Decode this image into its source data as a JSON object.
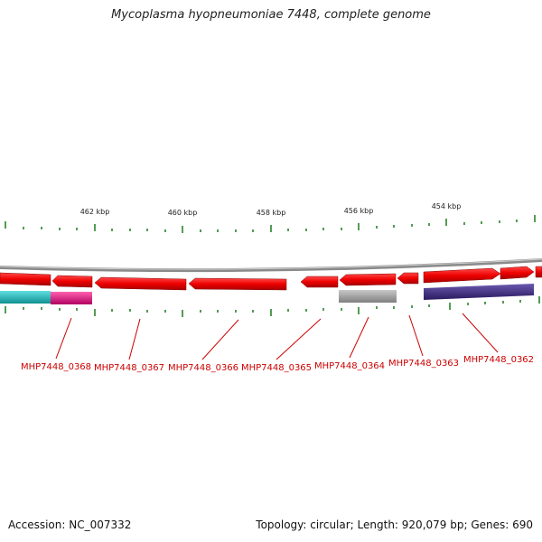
{
  "title": "Mycoplasma hyopneumoniae 7448, complete genome",
  "accession_label": "Accession: NC_007332",
  "summary_label": "Topology: circular; Length: 920,079 bp; Genes: 690",
  "topology": "circular",
  "genome_length_bp": 920079,
  "gene_count": 690,
  "scale_labels": [
    "462 kbp",
    "460 kbp",
    "458 kbp",
    "456 kbp",
    "454 kbp"
  ],
  "gene_labels": [
    "MHP7448_0368",
    "MHP7448_0367",
    "MHP7448_0366",
    "MHP7448_0365",
    "MHP7448_0364",
    "MHP7448_0363",
    "MHP7448_0362"
  ],
  "colors": {
    "backbone": "#888888",
    "gene": "#ee0000",
    "tick": "#1a7a1a",
    "label": "#cc0000",
    "cyan_feature": "#20c0c0",
    "magenta_feature": "#e8208a",
    "gray_feature": "#a0a0a0",
    "purple_feature": "#4a3a8a"
  }
}
